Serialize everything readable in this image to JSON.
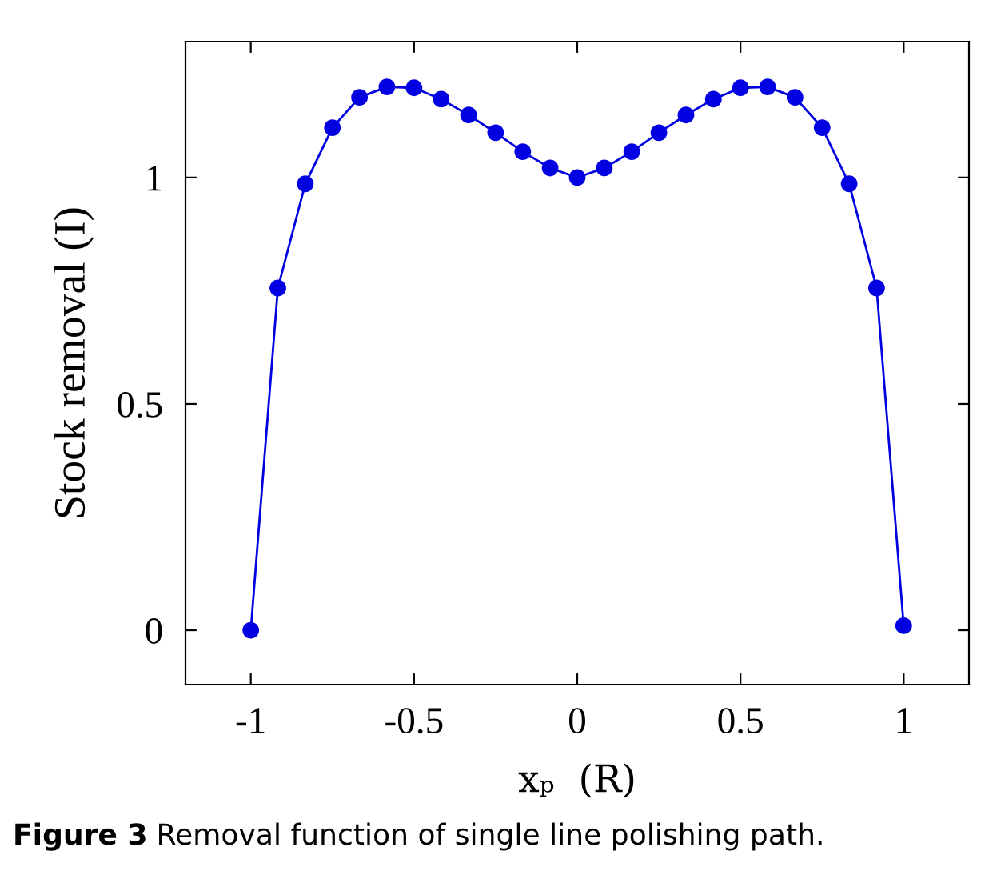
{
  "chart_data": {
    "type": "line",
    "xlabel": "xₚ  (R)",
    "ylabel": "Stock removal (I)",
    "annotations": [
      "Figure 3",
      "Removal function of single line polishing path."
    ],
    "series": [
      {
        "color": "#0000e0",
        "marker": "circle",
        "line_style": "solid",
        "x": [
          -1,
          -0.917,
          -0.833,
          -0.75,
          -0.667,
          -0.583,
          -0.5,
          -0.417,
          -0.333,
          -0.25,
          -0.167,
          -0.083,
          0,
          0.083,
          0.167,
          0.25,
          0.333,
          0.417,
          0.5,
          0.583,
          0.667,
          0.75,
          0.833,
          0.917,
          1
        ],
        "values": [
          0,
          0.756,
          0.986,
          1.11,
          1.177,
          1.2,
          1.198,
          1.173,
          1.138,
          1.099,
          1.057,
          1.021,
          1.0,
          1.021,
          1.057,
          1.099,
          1.138,
          1.173,
          1.198,
          1.2,
          1.177,
          1.11,
          0.986,
          0.756,
          0.01
        ]
      }
    ],
    "xlim": [
      -1.2,
      1.2
    ],
    "ylim": [
      -0.12,
      1.3
    ],
    "xticks": [
      {
        "value": -1,
        "label": "-1"
      },
      {
        "value": -0.5,
        "label": "-0.5"
      },
      0,
      0.5,
      1
    ],
    "yticks": [
      0,
      0.5,
      1
    ],
    "grid": false,
    "legend": false
  }
}
